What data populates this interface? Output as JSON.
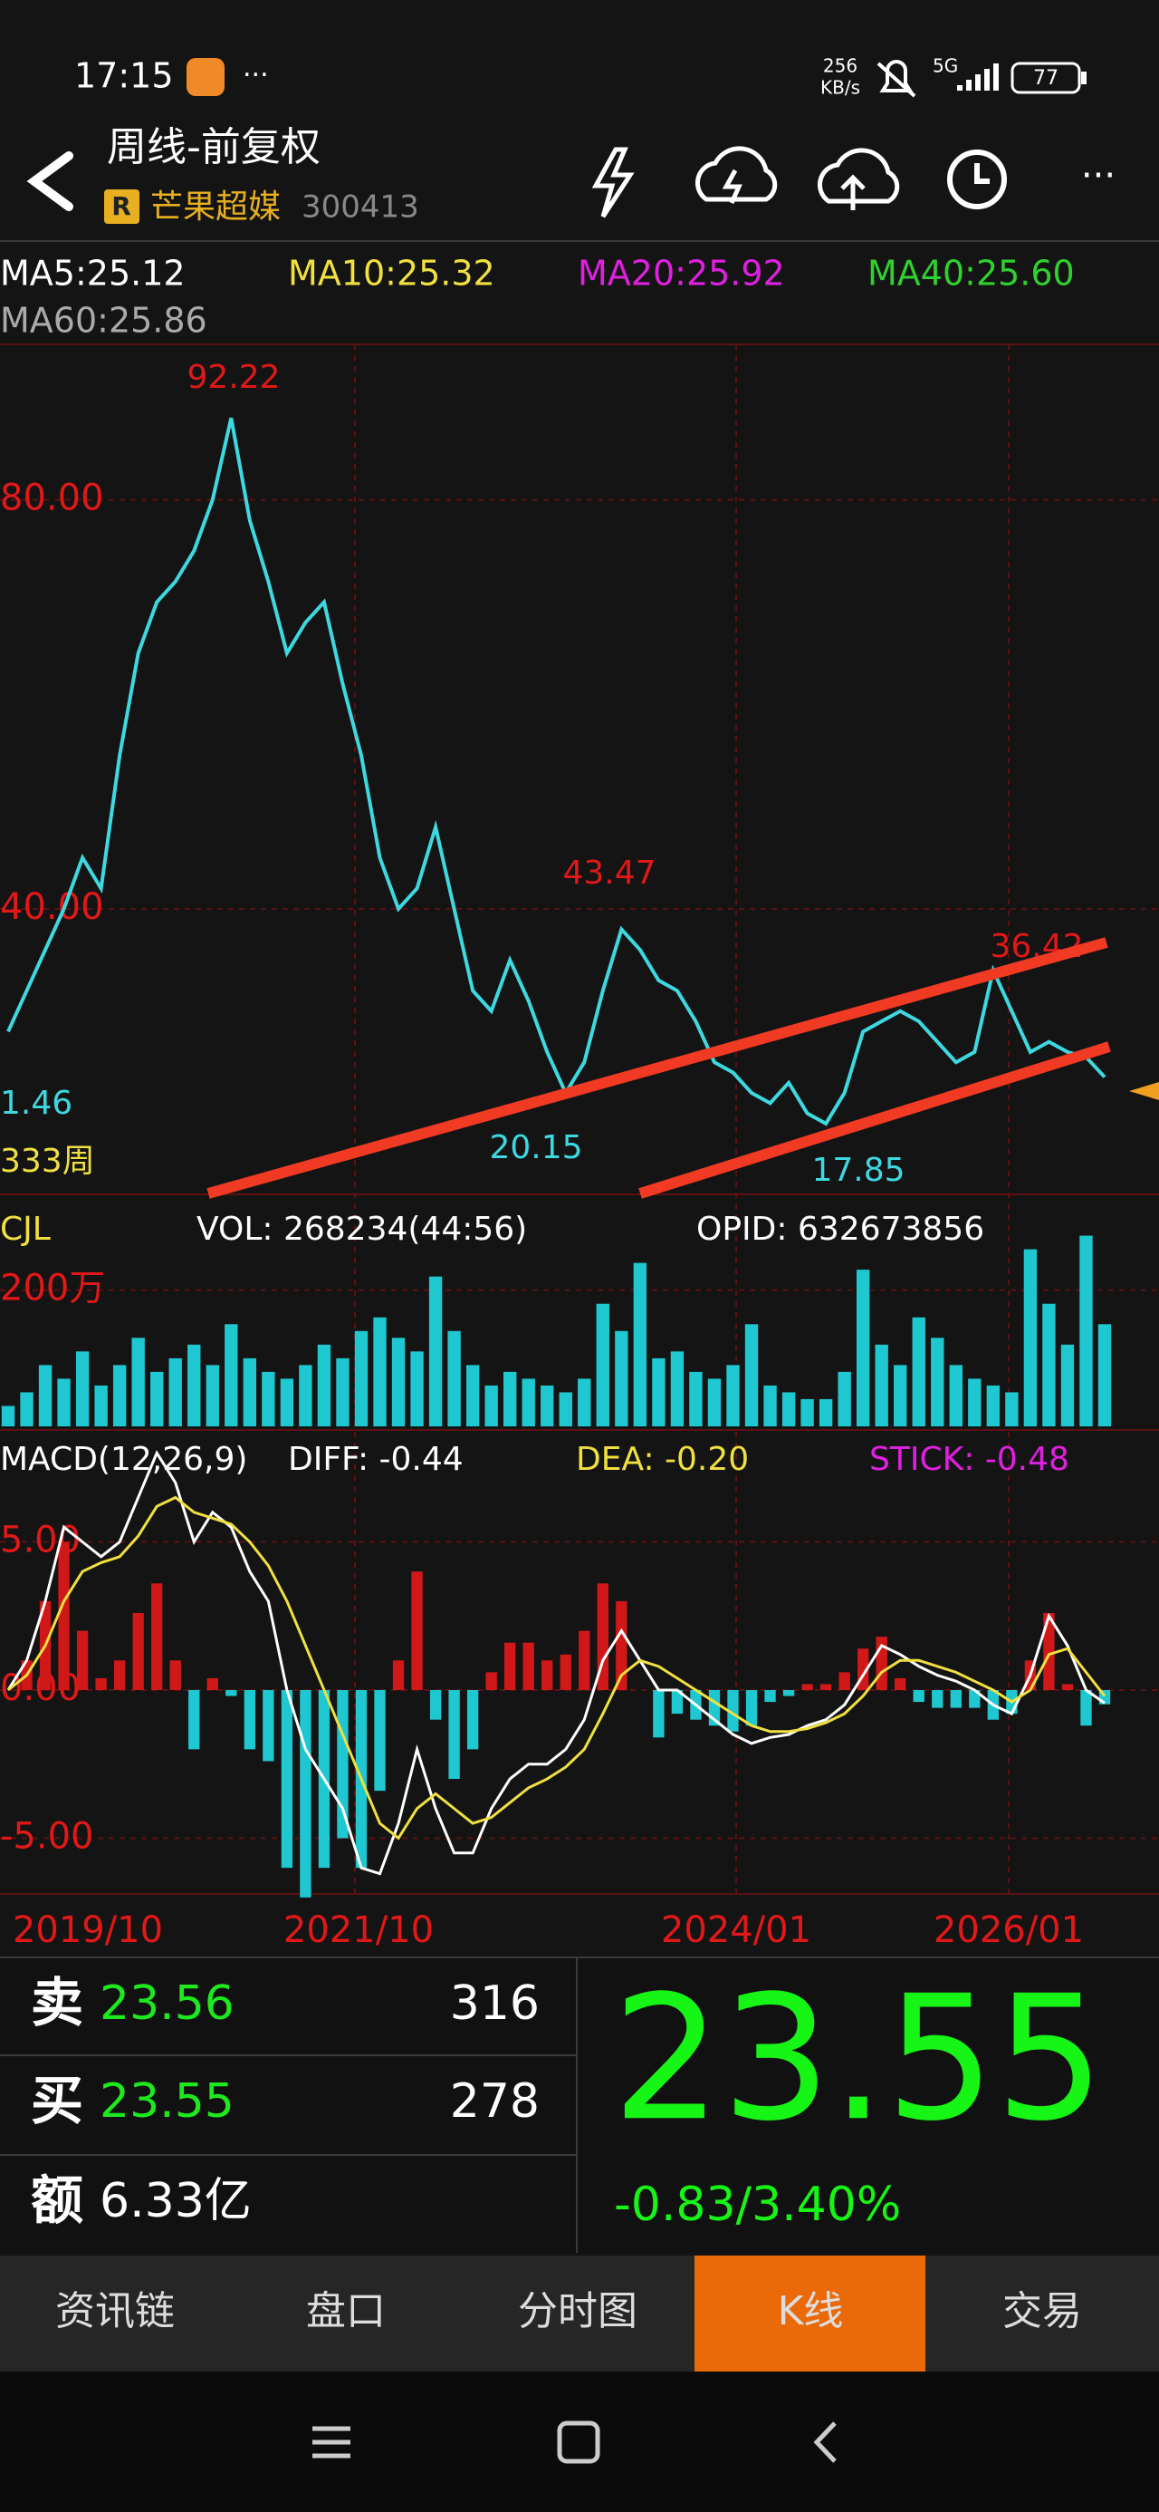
{
  "status_bar": {
    "time": "17:15",
    "net_speed": "256",
    "net_unit": "KB/s",
    "signal": "5G",
    "battery": "77"
  },
  "header": {
    "title": "周线-前复权",
    "badge": "R",
    "stock_name": "芒果超媒",
    "stock_code": "300413"
  },
  "indicators": {
    "ma": [
      "MA5:25.12",
      "MA10:25.32",
      "MA20:25.92",
      "MA40:25.60",
      "MA60:25.86"
    ]
  },
  "chart_data": [
    {
      "type": "line",
      "color": "#3ed8e0",
      "values": [
        28,
        32,
        36,
        40,
        45,
        42,
        55,
        65,
        70,
        72,
        75,
        80,
        88,
        78,
        72,
        65,
        68,
        70,
        62,
        55,
        45,
        40,
        42,
        48,
        40,
        32,
        30,
        35,
        31,
        26,
        22,
        25,
        32,
        38,
        36,
        33,
        32,
        29,
        25,
        24,
        22,
        21,
        23,
        20,
        19,
        22,
        28,
        29,
        30,
        29,
        27,
        25,
        26,
        34,
        30,
        26,
        27,
        26,
        25.5,
        23.55
      ],
      "ylim": [
        12.08,
        95.2
      ],
      "yticks": [
        {
          "value": 80,
          "label": "80.00"
        },
        {
          "value": 40,
          "label": "40.00"
        }
      ],
      "annotations": [
        92.22,
        43.47,
        36.42,
        20.15,
        17.85
      ],
      "left_label": "1.46",
      "period_label": "333周"
    },
    {
      "type": "bar",
      "title": "CJL",
      "legend": "VOL: 268234(44:56)",
      "info": "OPID: 632673856",
      "color": "#1fc8d0",
      "values": [
        300000,
        500000,
        900000,
        700000,
        1100000,
        600000,
        900000,
        1300000,
        800000,
        1000000,
        1200000,
        900000,
        1500000,
        1000000,
        800000,
        700000,
        900000,
        1200000,
        1000000,
        1400000,
        1600000,
        1300000,
        1100000,
        2200000,
        1400000,
        900000,
        600000,
        800000,
        700000,
        600000,
        500000,
        700000,
        1800000,
        1400000,
        2400000,
        1000000,
        1100000,
        800000,
        700000,
        900000,
        1500000,
        600000,
        500000,
        400000,
        400000,
        800000,
        2300000,
        1200000,
        900000,
        1600000,
        1300000,
        900000,
        700000,
        600000,
        500000,
        2600000,
        1800000,
        1200000,
        2800000,
        1500000
      ],
      "ylim": [
        0,
        3180000
      ],
      "yticks": [
        {
          "value": 2000000,
          "label": "200万"
        }
      ]
    },
    {
      "type": "macd",
      "title": "MACD(12,26,9)",
      "legend": [
        "DIFF: -0.44",
        "DEA: -0.20",
        "STICK: -0.48"
      ],
      "up_color": "#d01818",
      "down_color": "#1fc8d0",
      "series": [
        {
          "color": "#ffffff",
          "values": [
            0,
            1,
            3,
            5.5,
            5,
            4.5,
            5,
            6.5,
            8,
            7,
            5,
            6,
            5.5,
            4,
            3,
            0,
            -2,
            -3,
            -4,
            -6,
            -6.2,
            -4.5,
            -2,
            -4,
            -5.5,
            -5.5,
            -4,
            -3,
            -2.5,
            -2.5,
            -2,
            -1,
            1,
            2,
            1,
            0,
            0,
            -0.5,
            -1,
            -1.5,
            -1.8,
            -1.6,
            -1.5,
            -1.2,
            -1,
            -0.5,
            0.5,
            1.5,
            1.2,
            0.8,
            0.5,
            0.3,
            0,
            -0.5,
            -0.8,
            0.5,
            2.5,
            1.5,
            0,
            -0.44
          ]
        },
        {
          "color": "#f0e040",
          "values": [
            0,
            0.5,
            1.5,
            3,
            4,
            4.3,
            4.5,
            5.2,
            6.2,
            6.5,
            6,
            5.8,
            5.6,
            5,
            4.2,
            3,
            1.5,
            0,
            -1.5,
            -3,
            -4.5,
            -5,
            -4,
            -3.5,
            -4,
            -4.5,
            -4.3,
            -3.8,
            -3.3,
            -3,
            -2.6,
            -2,
            -0.8,
            0.5,
            1,
            0.8,
            0.4,
            0,
            -0.4,
            -0.8,
            -1.2,
            -1.4,
            -1.4,
            -1.3,
            -1.1,
            -0.8,
            -0.2,
            0.6,
            1,
            1,
            0.8,
            0.6,
            0.3,
            0,
            -0.4,
            0,
            1.2,
            1.4,
            0.6,
            -0.2
          ]
        },
        {
          "color": "#e020e0",
          "values": [
            0,
            1,
            3,
            5,
            2,
            0.4,
            1,
            2.6,
            3.6,
            1,
            -2,
            0.4,
            -0.2,
            -2,
            -2.4,
            -6,
            -7,
            -6,
            -5,
            -6,
            -3.4,
            1,
            4,
            -1,
            -3,
            -2,
            0.6,
            1.6,
            1.6,
            1,
            1.2,
            2,
            3.6,
            3,
            0,
            -1.6,
            -0.8,
            -1,
            -1.2,
            -1.4,
            -1.2,
            -0.4,
            -0.2,
            0.2,
            0.2,
            0.6,
            1.4,
            1.8,
            0.4,
            -0.4,
            -0.6,
            -0.6,
            -0.6,
            -1,
            -0.8,
            1,
            2.6,
            0.2,
            -1.2,
            -0.48
          ]
        }
      ],
      "ylim": [
        -6.76,
        8.38
      ],
      "yticks": [
        {
          "value": 5,
          "label": "5.00"
        },
        {
          "value": 0,
          "label": "0.00"
        },
        {
          "value": -5,
          "label": "-5.00"
        }
      ]
    }
  ],
  "date_labels": [
    "2019/10",
    "2021/10",
    "2024/01",
    "2026/01"
  ],
  "quote": {
    "sell_label": "卖",
    "sell_price": "23.56",
    "sell_volume": "316",
    "buy_label": "买",
    "buy_price": "23.55",
    "buy_volume": "278",
    "amount_label": "额",
    "amount": "6.33亿",
    "price": "23.55",
    "change": "-0.83/3.40%"
  },
  "tabs": [
    "资讯链",
    "盘口",
    "分时图",
    "K线",
    "交易"
  ]
}
